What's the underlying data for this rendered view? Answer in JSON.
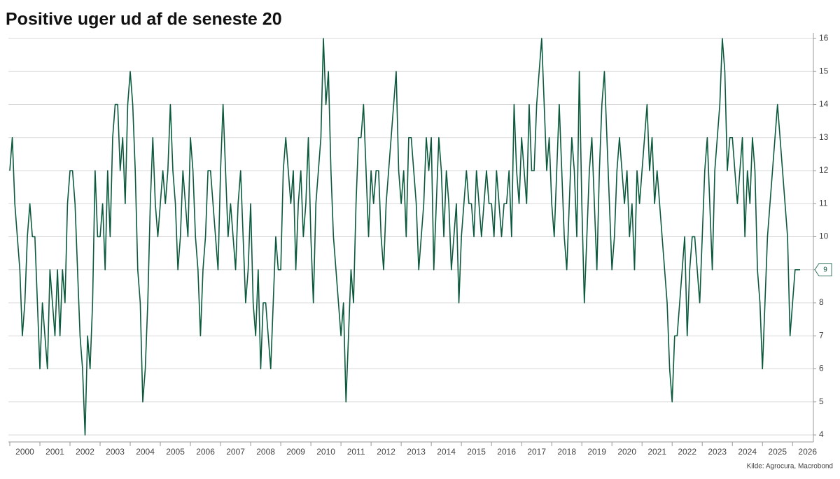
{
  "chart_data": {
    "type": "line",
    "title": "Positive uger ud af de seneste 20",
    "source": "Kilde: Agrocura, Macrobond",
    "xlim": [
      2000,
      2026.25
    ],
    "xticks": [
      2000,
      2001,
      2002,
      2003,
      2004,
      2005,
      2006,
      2007,
      2008,
      2009,
      2010,
      2011,
      2012,
      2013,
      2014,
      2015,
      2016,
      2017,
      2018,
      2019,
      2020,
      2021,
      2022,
      2023,
      2024,
      2025,
      2026
    ],
    "ylim": [
      4,
      16
    ],
    "yticks": [
      4,
      5,
      6,
      7,
      8,
      9,
      10,
      11,
      12,
      13,
      14,
      15,
      16
    ],
    "grid": true,
    "series": [
      {
        "color": "#0b5a3c",
        "values": [
          12,
          13,
          11,
          10,
          9,
          7,
          8,
          10,
          11,
          10,
          10,
          8,
          6,
          8,
          7,
          6,
          9,
          8,
          7,
          9,
          7,
          9,
          8,
          11,
          12,
          12,
          11,
          9,
          7,
          6,
          4,
          7,
          6,
          8,
          12,
          10,
          10,
          11,
          9,
          12,
          10,
          13,
          14,
          14,
          12,
          13,
          11,
          14,
          15,
          14,
          12,
          9,
          8,
          5,
          6,
          8,
          11,
          13,
          11,
          10,
          11,
          12,
          11,
          12,
          14,
          12,
          11,
          9,
          10,
          12,
          11,
          10,
          13,
          12,
          10,
          9,
          7,
          9,
          10,
          12,
          12,
          11,
          10,
          9,
          12,
          14,
          12,
          10,
          11,
          10,
          9,
          11,
          12,
          10,
          8,
          9,
          11,
          8,
          7,
          9,
          6,
          8,
          8,
          7,
          6,
          8,
          10,
          9,
          9,
          12,
          13,
          12,
          11,
          12,
          9,
          11,
          12,
          10,
          11,
          13,
          10,
          8,
          11,
          12,
          13,
          16,
          14,
          15,
          12,
          10,
          9,
          8,
          7,
          8,
          5,
          7,
          9,
          8,
          11,
          13,
          13,
          14,
          12,
          10,
          12,
          11,
          12,
          12,
          10,
          9,
          11,
          12,
          13,
          14,
          15,
          12,
          11,
          12,
          10,
          13,
          13,
          12,
          11,
          9,
          10,
          11,
          13,
          12,
          13,
          9,
          11,
          13,
          12,
          10,
          12,
          11,
          9,
          10,
          11,
          8,
          10,
          11,
          12,
          11,
          11,
          10,
          12,
          11,
          10,
          11,
          12,
          11,
          11,
          10,
          12,
          11,
          10,
          11,
          11,
          12,
          10,
          14,
          12,
          11,
          13,
          12,
          11,
          14,
          12,
          12,
          14,
          15,
          16,
          14,
          12,
          13,
          11,
          10,
          12,
          14,
          12,
          10,
          9,
          11,
          13,
          12,
          10,
          15,
          11,
          8,
          10,
          12,
          13,
          11,
          9,
          12,
          14,
          15,
          13,
          11,
          9,
          10,
          12,
          13,
          12,
          11,
          12,
          10,
          11,
          9,
          12,
          11,
          12,
          13,
          14,
          12,
          13,
          11,
          12,
          11,
          10,
          9,
          8,
          6,
          5,
          7,
          7,
          8,
          9,
          10,
          7,
          9,
          10,
          10,
          9,
          8,
          10,
          12,
          13,
          11,
          9,
          12,
          13,
          14,
          16,
          15,
          12,
          13,
          13,
          12,
          11,
          12,
          13,
          10,
          12,
          11,
          13,
          12,
          9,
          8,
          6,
          8,
          10,
          11,
          12,
          13,
          14,
          13,
          12,
          11,
          10,
          7,
          8,
          9,
          9,
          9
        ]
      }
    ]
  }
}
